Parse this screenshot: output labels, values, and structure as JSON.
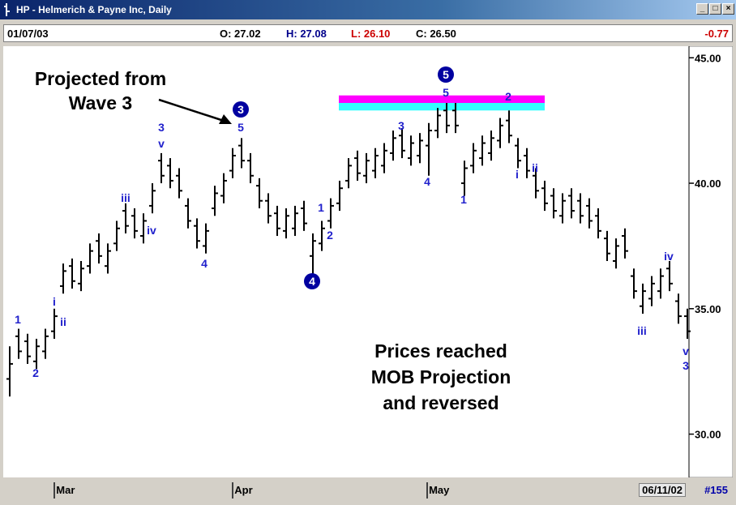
{
  "window": {
    "title": "HP - Helmerich & Payne Inc, Daily"
  },
  "info_bar": {
    "date": "01/07/03",
    "open": "O: 27.02",
    "high": "H: 27.08",
    "low": "L: 26.10",
    "close": "C: 26.50",
    "change": "-0.77"
  },
  "footer": {
    "date": "06/11/02",
    "count": "#155"
  },
  "chart_data": {
    "type": "ohlc",
    "open": [
      32.2,
      33.9,
      33.7,
      32.9,
      33.3,
      34.1,
      35.9,
      36.7,
      36.0,
      36.7,
      37.7,
      36.7,
      37.6,
      38.9,
      38.7,
      37.9,
      39.1,
      40.9,
      40.7,
      40.3,
      39.1,
      38.3,
      37.5,
      39.0,
      39.5,
      40.5,
      41.5,
      40.9,
      39.9,
      39.3,
      38.8,
      38.1,
      38.2,
      39.0,
      37.1,
      37.6,
      38.5,
      39.2,
      40.1,
      41.0,
      40.3,
      40.5,
      40.7,
      41.2,
      41.9,
      41.0,
      41.1,
      41.5,
      42.1,
      42.9,
      42.9,
      40.0,
      40.7,
      41.0,
      41.2,
      41.7,
      42.5,
      41.5,
      41.1,
      40.3,
      39.8,
      39.5,
      38.7,
      39.5,
      39.3,
      39.1,
      38.7,
      37.8,
      36.9,
      37.9,
      36.3,
      35.1,
      35.4,
      35.7,
      36.6,
      35.3,
      34.7
    ],
    "high": [
      33.5,
      34.2,
      34.0,
      33.8,
      34.2,
      35.0,
      36.8,
      37.0,
      36.9,
      37.6,
      38.0,
      37.6,
      38.5,
      39.2,
      39.0,
      38.8,
      40.0,
      41.2,
      41.0,
      40.6,
      39.4,
      38.6,
      38.4,
      39.9,
      40.4,
      41.4,
      41.8,
      41.2,
      40.2,
      39.6,
      39.1,
      39.0,
      39.1,
      39.3,
      38.0,
      38.5,
      39.4,
      40.1,
      41.0,
      41.3,
      41.2,
      41.4,
      41.6,
      42.1,
      42.2,
      41.9,
      42.0,
      42.4,
      43.0,
      43.2,
      43.2,
      40.9,
      41.6,
      41.9,
      42.1,
      42.6,
      42.9,
      41.8,
      41.4,
      40.6,
      40.1,
      39.8,
      39.6,
      39.8,
      39.6,
      39.4,
      39.0,
      38.1,
      37.8,
      38.2,
      36.6,
      36.0,
      36.3,
      36.6,
      36.9,
      35.6,
      35.0
    ],
    "low": [
      31.5,
      33.0,
      32.8,
      32.6,
      33.0,
      33.8,
      35.6,
      35.8,
      35.7,
      36.4,
      36.8,
      36.4,
      37.3,
      38.0,
      37.8,
      37.6,
      38.8,
      40.0,
      39.8,
      39.4,
      38.2,
      37.4,
      37.2,
      38.7,
      39.2,
      40.2,
      40.6,
      40.0,
      39.0,
      38.4,
      37.9,
      37.8,
      37.9,
      38.1,
      36.3,
      37.3,
      38.2,
      38.9,
      39.8,
      40.1,
      40.0,
      40.2,
      40.4,
      40.9,
      41.0,
      40.7,
      40.8,
      40.3,
      41.8,
      42.0,
      42.0,
      39.5,
      40.4,
      40.7,
      40.9,
      41.4,
      41.6,
      40.6,
      40.2,
      39.4,
      38.9,
      38.6,
      38.4,
      38.6,
      38.4,
      38.2,
      37.8,
      36.9,
      36.6,
      37.0,
      35.4,
      34.8,
      35.1,
      35.4,
      35.7,
      34.4,
      33.8
    ],
    "close": [
      32.8,
      33.3,
      33.1,
      33.5,
      33.9,
      34.7,
      36.5,
      36.1,
      36.6,
      37.3,
      37.1,
      37.3,
      38.2,
      38.3,
      38.1,
      38.5,
      39.7,
      40.3,
      40.1,
      39.7,
      38.5,
      37.7,
      38.1,
      39.6,
      40.1,
      41.1,
      40.9,
      40.3,
      39.3,
      38.7,
      38.2,
      38.7,
      38.8,
      38.4,
      37.7,
      38.2,
      39.1,
      39.8,
      40.7,
      40.4,
      40.9,
      41.1,
      41.3,
      41.8,
      41.3,
      41.6,
      41.7,
      42.1,
      42.7,
      42.3,
      42.3,
      40.6,
      41.3,
      41.6,
      41.8,
      42.3,
      41.9,
      40.9,
      40.5,
      39.7,
      39.2,
      38.9,
      39.3,
      38.9,
      38.7,
      38.5,
      38.1,
      37.2,
      37.5,
      37.3,
      35.7,
      35.7,
      36.0,
      36.3,
      36.0,
      34.7,
      34.1
    ],
    "xlim": [
      -0.5,
      76.5
    ],
    "xticks": [
      {
        "value": 5.3,
        "label": "Mar"
      },
      {
        "value": 25.3,
        "label": "Apr"
      },
      {
        "value": 47.1,
        "label": "May"
      }
    ],
    "ylim": [
      28.5,
      45.3
    ],
    "yticks": [
      {
        "value": 45,
        "label": "45.00"
      },
      {
        "value": 40,
        "label": "40.00"
      },
      {
        "value": 35,
        "label": "35.00"
      },
      {
        "value": 30,
        "label": "30.00"
      }
    ],
    "zones": [
      {
        "from": 43.2,
        "to": 43.5,
        "color": "#ff00ff"
      },
      {
        "from": 42.9,
        "to": 43.2,
        "color": "#33ffff"
      }
    ],
    "wave_labels": [
      {
        "text": "1"
      },
      {
        "text": "2"
      },
      {
        "text": "i"
      },
      {
        "text": "ii"
      },
      {
        "text": "iii"
      },
      {
        "text": "iv"
      },
      {
        "text": "3"
      },
      {
        "text": "v"
      },
      {
        "text": "4"
      },
      {
        "text": "3",
        "circled": true
      },
      {
        "text": "5"
      },
      {
        "text": "4",
        "circled": true
      },
      {
        "text": "1"
      },
      {
        "text": "2"
      },
      {
        "text": "3"
      },
      {
        "text": "4"
      },
      {
        "text": "5",
        "circled": true
      },
      {
        "text": "5"
      },
      {
        "text": "1"
      },
      {
        "text": "2"
      },
      {
        "text": "i"
      },
      {
        "text": "ii"
      },
      {
        "text": "iii"
      },
      {
        "text": "iv"
      },
      {
        "text": "v"
      },
      {
        "text": "3"
      }
    ],
    "annotations": [
      {
        "lines": [
          "Projected from",
          "Wave 3"
        ]
      },
      {
        "lines": [
          "Prices reached",
          "MOB Projection",
          "and reversed"
        ]
      }
    ]
  }
}
